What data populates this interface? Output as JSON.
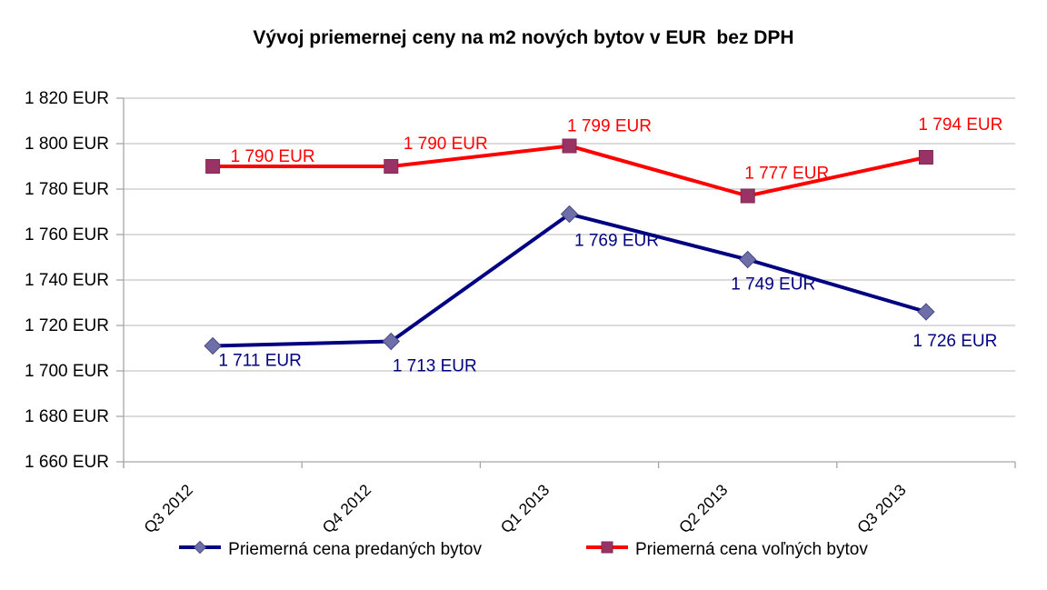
{
  "chart_data": {
    "type": "line",
    "title": "Vývoj priemernej ceny na m2 nových bytov v EUR  bez DPH",
    "categories": [
      "Q3 2012",
      "Q4 2012",
      "Q1 2013",
      "Q2 2013",
      "Q3 2013"
    ],
    "series": [
      {
        "name": "Priemerná cena predaných bytov",
        "values": [
          1711,
          1713,
          1769,
          1749,
          1726
        ],
        "point_labels": [
          "1 711 EUR",
          "1 713 EUR",
          "1 769 EUR",
          "1 749 EUR",
          "1 726 EUR"
        ],
        "line_color": "#000080",
        "marker": "diamond",
        "marker_color": "#6E6EA8",
        "marker_edge_color": "#4A4A85",
        "label_color": "#000080",
        "label_offsets": [
          [
            52,
            16
          ],
          [
            48,
            27
          ],
          [
            52,
            29
          ],
          [
            28,
            27
          ],
          [
            32,
            32
          ]
        ]
      },
      {
        "name": "Priemerná cena voľných bytov",
        "values": [
          1790,
          1790,
          1799,
          1777,
          1794
        ],
        "point_labels": [
          "1 790 EUR",
          "1 790 EUR",
          "1 799 EUR",
          "1 777 EUR",
          "1 794 EUR"
        ],
        "line_color": "#FF0000",
        "marker": "square",
        "marker_color": "#993366",
        "marker_edge_color": "#7E2A55",
        "label_color": "#FF0000",
        "label_offsets": [
          [
            66,
            -11
          ],
          [
            60,
            -25
          ],
          [
            44,
            -22
          ],
          [
            43,
            -25
          ],
          [
            38,
            -36
          ]
        ]
      }
    ],
    "ylim": [
      1660,
      1820
    ],
    "ytick_step": 20,
    "ytick_labels": [
      "1 660 EUR",
      "1 680 EUR",
      "1 700 EUR",
      "1 720 EUR",
      "1 740 EUR",
      "1 760 EUR",
      "1 780 EUR",
      "1 800 EUR",
      "1 820 EUR"
    ],
    "grid": true,
    "legend_position": "bottom",
    "gridline_color": "#C6C6C6",
    "axis_color": "#A6A6A6",
    "tick_label_color": "#000000"
  }
}
